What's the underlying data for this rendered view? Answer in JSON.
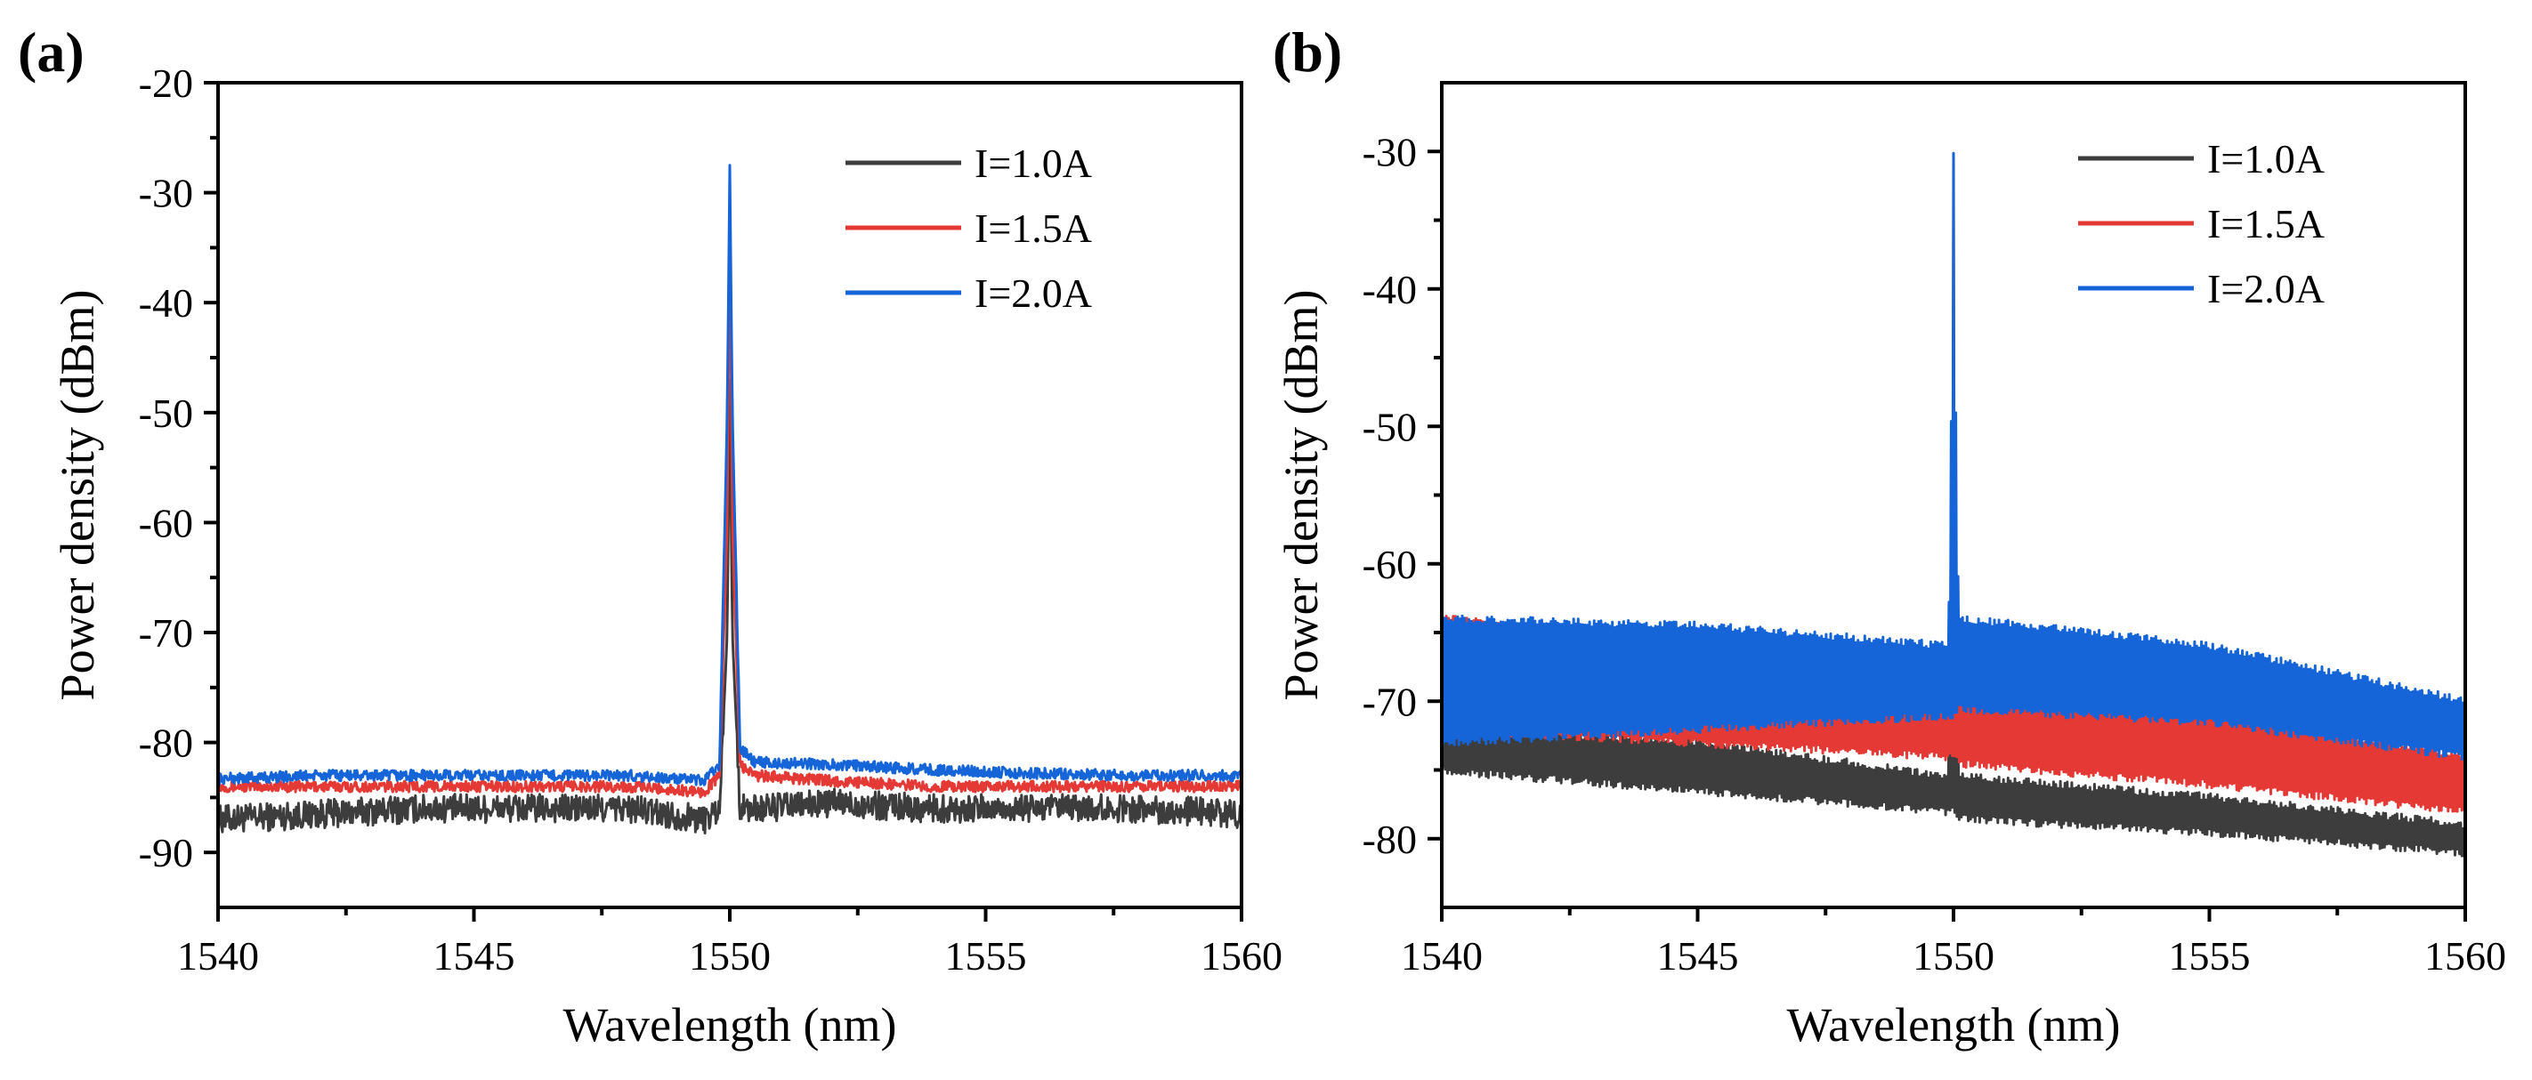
{
  "chart_data": [
    {
      "panel_label": "(a)",
      "type": "line",
      "xlabel": "Wavelength (nm)",
      "ylabel": "Power density (dBm)",
      "xlim": [
        1540,
        1560
      ],
      "ylim": [
        -95,
        -20
      ],
      "xticks": [
        1540,
        1545,
        1550,
        1555,
        1560
      ],
      "yticks": [
        -90,
        -80,
        -70,
        -60,
        -50,
        -40,
        -30,
        -20
      ],
      "legend_position": "top-right",
      "series": [
        {
          "name": "I=1.0A",
          "color": "#3d3d3d",
          "x": [
            1540,
            1542,
            1544,
            1546,
            1548,
            1549.5,
            1549.8,
            1549.95,
            1550.0,
            1550.05,
            1550.2,
            1550.5,
            1552,
            1554,
            1556,
            1558,
            1560
          ],
          "y": [
            -87,
            -86.5,
            -86,
            -86,
            -86,
            -87,
            -86,
            -70,
            -47,
            -70,
            -86,
            -86,
            -85.5,
            -86,
            -86,
            -86,
            -86.5
          ],
          "noise": 1.3
        },
        {
          "name": "I=1.5A",
          "color": "#e53935",
          "x": [
            1540,
            1542,
            1544,
            1546,
            1548,
            1549.5,
            1549.8,
            1549.95,
            1550.0,
            1550.05,
            1550.2,
            1550.5,
            1552,
            1554,
            1556,
            1558,
            1560
          ],
          "y": [
            -84,
            -84,
            -84,
            -84,
            -84,
            -84.5,
            -83,
            -60,
            -30,
            -60,
            -82,
            -83,
            -83.5,
            -84,
            -84,
            -84,
            -84
          ],
          "noise": 0.5
        },
        {
          "name": "I=2.0A",
          "color": "#1565d8",
          "x": [
            1540,
            1542,
            1544,
            1546,
            1548,
            1549.5,
            1549.8,
            1549.95,
            1550.0,
            1550.05,
            1550.2,
            1550.5,
            1552,
            1554,
            1556,
            1558,
            1560
          ],
          "y": [
            -83.3,
            -83,
            -83,
            -83,
            -83,
            -83.5,
            -82,
            -50,
            -27.5,
            -50,
            -80.5,
            -81.8,
            -82,
            -82.5,
            -82.8,
            -83,
            -83
          ],
          "noise": 0.5
        }
      ]
    },
    {
      "panel_label": "(b)",
      "type": "line",
      "xlabel": "Wavelength (nm)",
      "ylabel": "Power density (dBm)",
      "xlim": [
        1540,
        1560
      ],
      "ylim": [
        -85,
        -25
      ],
      "xticks": [
        1540,
        1545,
        1550,
        1555,
        1560
      ],
      "yticks": [
        -80,
        -70,
        -60,
        -50,
        -40,
        -30
      ],
      "legend_position": "top-right",
      "series": [
        {
          "name": "I=1.0A",
          "color": "#3d3d3d",
          "x": [
            1540,
            1545,
            1549.9,
            1549.97,
            1550.0,
            1550.03,
            1550.1,
            1555,
            1560
          ],
          "y_high": [
            -72,
            -73,
            -75.5,
            -60,
            -40,
            -60,
            -75.5,
            -77,
            -79
          ],
          "y_low": [
            -75,
            -76.5,
            -78,
            -78,
            -78,
            -78,
            -78.5,
            -79.5,
            -81
          ]
        },
        {
          "name": "I=1.5A",
          "color": "#e53935",
          "x": [
            1540,
            1545,
            1549.9,
            1549.97,
            1550.0,
            1550.03,
            1550.1,
            1555,
            1560
          ],
          "y_high": [
            -64,
            -66,
            -68.5,
            -50,
            -34,
            -50,
            -69,
            -71,
            -74
          ],
          "y_low": [
            -72,
            -73,
            -74,
            -74,
            -74,
            -74,
            -74.5,
            -76,
            -78
          ]
        },
        {
          "name": "I=2.0A",
          "color": "#1565d8",
          "x": [
            1540,
            1545,
            1549.9,
            1549.97,
            1550.0,
            1550.03,
            1550.1,
            1555,
            1560
          ],
          "y_high": [
            -64,
            -64.5,
            -66,
            -45,
            -30,
            -45,
            -64,
            -66,
            -70
          ],
          "y_low": [
            -73,
            -72,
            -71,
            -71,
            -71,
            -71,
            -70.5,
            -71.5,
            -74
          ]
        }
      ]
    }
  ]
}
